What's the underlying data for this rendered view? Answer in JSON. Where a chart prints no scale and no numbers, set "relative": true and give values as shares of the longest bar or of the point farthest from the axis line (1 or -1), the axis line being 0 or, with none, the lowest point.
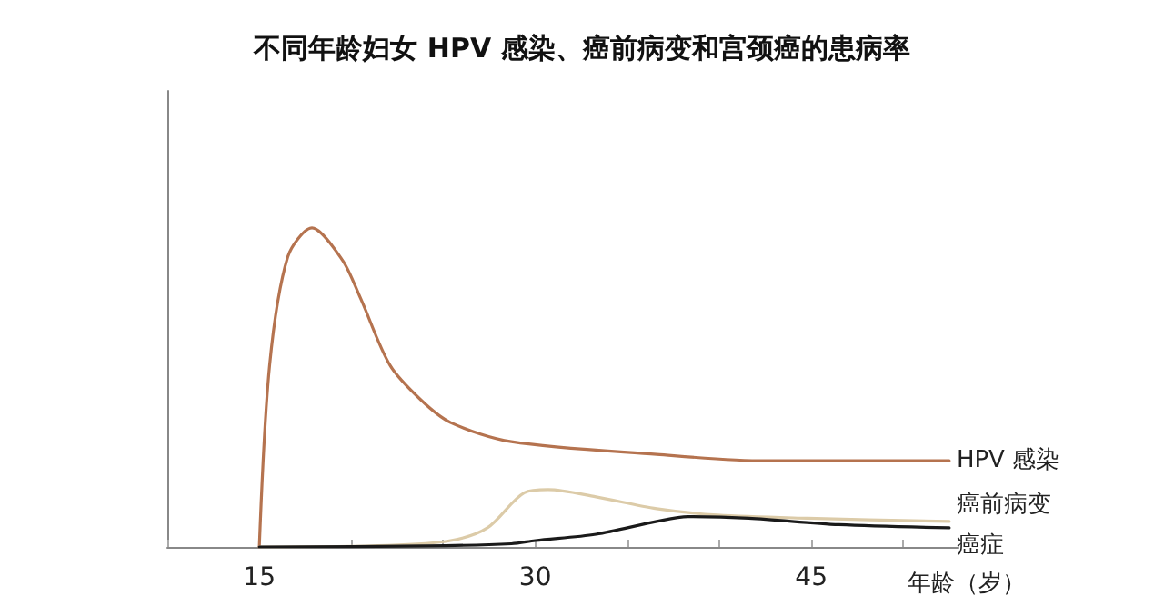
{
  "chart_data": {
    "type": "line",
    "title": "不同年龄妇女 HPV 感染、癌前病变和宫颈癌的患病率",
    "xlabel": "年龄（岁）",
    "relative": true,
    "xlim": [
      10,
      53
    ],
    "xticks": [
      {
        "value": 10,
        "label": null
      },
      15,
      {
        "value": 20,
        "label": null
      },
      {
        "value": 25,
        "label": null
      },
      30,
      {
        "value": 35,
        "label": null
      },
      {
        "value": 40,
        "label": null
      },
      45,
      {
        "value": 50,
        "label": null
      }
    ],
    "marker": "none",
    "line_style": "solid",
    "grid": false,
    "legend": false,
    "series": [
      {
        "name": "HPV 感染",
        "color": "#b5734f",
        "x": [
          15,
          15.56,
          16.55,
          17.86,
          19.51,
          20.5,
          22.1,
          23.8,
          25.4,
          28.7,
          36.6,
          42.5,
          52.5
        ],
        "values": [
          0,
          0.57,
          0.91,
          1.0,
          0.9,
          0.78,
          0.57,
          0.46,
          0.39,
          0.33,
          0.29,
          0.27,
          0.27
        ]
      },
      {
        "name": "癌前病变",
        "color": "#dccba8",
        "x": [
          15,
          22,
          25.4,
          27.4,
          29.4,
          30.7,
          33.3,
          36.6,
          39.9,
          44.8,
          52.5
        ],
        "values": [
          0,
          0.005,
          0.02,
          0.06,
          0.17,
          0.18,
          0.157,
          0.12,
          0.1,
          0.09,
          0.08
        ]
      },
      {
        "name": "癌症",
        "color": "#1a1a1a",
        "x": [
          15,
          24,
          28.7,
          30,
          33.3,
          36.6,
          38.3,
          41.6,
          46.5,
          52.5
        ],
        "values": [
          0,
          0.003,
          0.01,
          0.02,
          0.04,
          0.08,
          0.095,
          0.09,
          0.07,
          0.06
        ]
      }
    ]
  }
}
